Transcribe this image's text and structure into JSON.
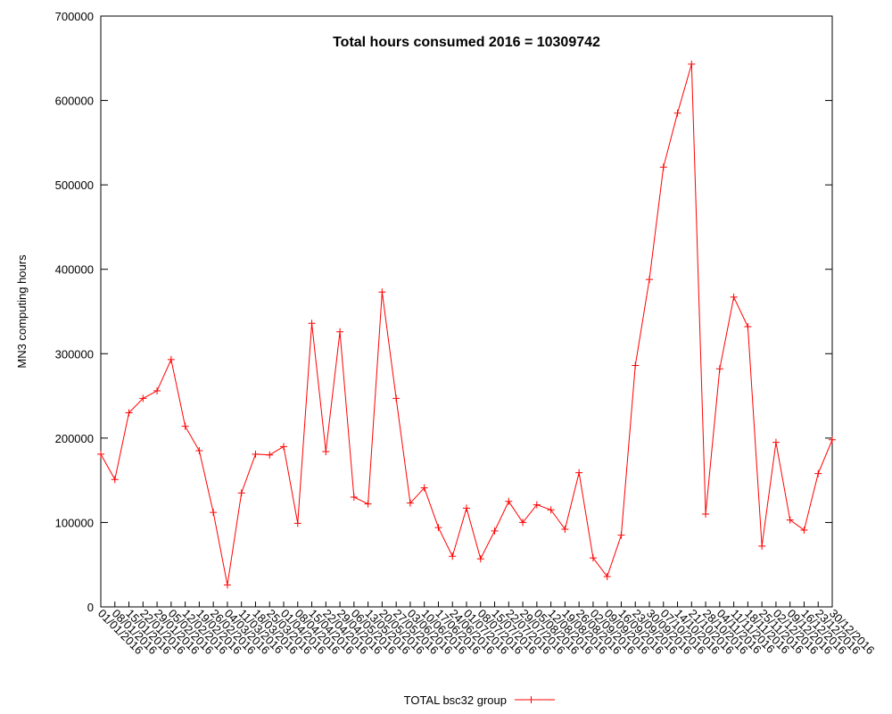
{
  "chart_data": {
    "type": "line",
    "title": "Total hours consumed 2016 = 10309742",
    "ylabel": "MN3 computing hours",
    "categories": [
      "01/01/2016",
      "08/01/2016",
      "15/01/2016",
      "22/01/2016",
      "29/01/2016",
      "05/02/2016",
      "12/02/2016",
      "19/02/2016",
      "26/02/2016",
      "04/03/2016",
      "11/03/2016",
      "18/03/2016",
      "25/03/2016",
      "01/04/2016",
      "08/04/2016",
      "15/04/2016",
      "22/04/2016",
      "29/04/2016",
      "06/05/2016",
      "13/05/2016",
      "20/05/2016",
      "27/05/2016",
      "03/06/2016",
      "10/06/2016",
      "17/06/2016",
      "24/06/2016",
      "01/07/2016",
      "08/07/2016",
      "15/07/2016",
      "22/07/2016",
      "29/07/2016",
      "05/08/2016",
      "12/08/2016",
      "19/08/2016",
      "26/08/2016",
      "02/09/2016",
      "09/09/2016",
      "16/09/2016",
      "23/09/2016",
      "30/09/2016",
      "07/10/2016",
      "14/10/2016",
      "21/10/2016",
      "28/10/2016",
      "04/11/2016",
      "11/11/2016",
      "18/11/2016",
      "25/11/2016",
      "02/12/2016",
      "09/12/2016",
      "16/12/2016",
      "23/12/2016",
      "30/12/2016"
    ],
    "series": [
      {
        "name": "TOTAL bsc32 group",
        "color": "#ff0000",
        "values": [
          181000,
          151000,
          230000,
          247000,
          256000,
          293000,
          214000,
          185000,
          112000,
          26000,
          135000,
          181000,
          180000,
          190000,
          99000,
          336000,
          184000,
          326000,
          130000,
          122000,
          373000,
          247000,
          123000,
          141000,
          94000,
          60000,
          117000,
          57000,
          90000,
          125000,
          100000,
          121000,
          115000,
          92000,
          159000,
          58000,
          36000,
          85000,
          286000,
          388000,
          521000,
          585000,
          643000,
          110000,
          282000,
          367000,
          332000,
          72000,
          195000,
          103000,
          91000,
          158000,
          198000
        ]
      }
    ],
    "ylim": [
      0,
      700000
    ],
    "yticks": [
      0,
      100000,
      200000,
      300000,
      400000,
      500000,
      600000,
      700000
    ],
    "legend": "bottom"
  }
}
